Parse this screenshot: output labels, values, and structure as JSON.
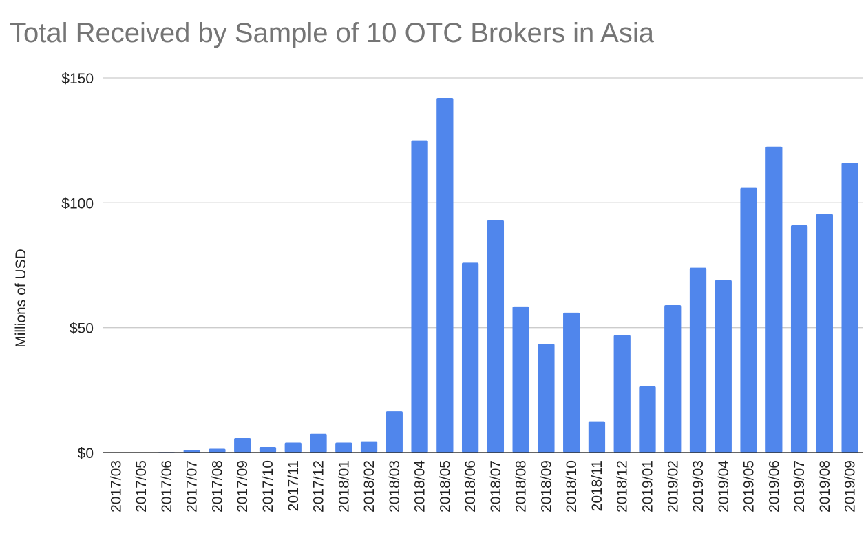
{
  "chart_data": {
    "type": "bar",
    "title": "Total Received by Sample of 10 OTC Brokers in Asia",
    "xlabel": "",
    "ylabel": "Millions of USD",
    "ylim": [
      0,
      150
    ],
    "yticks": [
      0,
      50,
      100,
      150
    ],
    "ytick_labels": [
      "$0",
      "$50",
      "$100",
      "$150"
    ],
    "grid": true,
    "legend": "none",
    "bar_color": "#5086ec",
    "categories": [
      "2017/03",
      "2017/05",
      "2017/06",
      "2017/07",
      "2017/08",
      "2017/09",
      "2017/10",
      "2017/11",
      "2017/12",
      "2018/01",
      "2018/02",
      "2018/03",
      "2018/04",
      "2018/05",
      "2018/06",
      "2018/07",
      "2018/08",
      "2018/09",
      "2018/10",
      "2018/11",
      "2018/12",
      "2019/01",
      "2019/02",
      "2019/03",
      "2019/04",
      "2019/05",
      "2019/06",
      "2019/07",
      "2019/08",
      "2019/09"
    ],
    "values": [
      0.1,
      0.1,
      0.2,
      1.0,
      1.5,
      5.8,
      2.2,
      4.0,
      7.5,
      4.0,
      4.5,
      16.5,
      125.0,
      142.0,
      76.0,
      93.0,
      58.5,
      43.5,
      56.0,
      12.5,
      47.0,
      26.5,
      59.0,
      74.0,
      69.0,
      106.0,
      122.5,
      91.0,
      95.5,
      116.0
    ]
  }
}
